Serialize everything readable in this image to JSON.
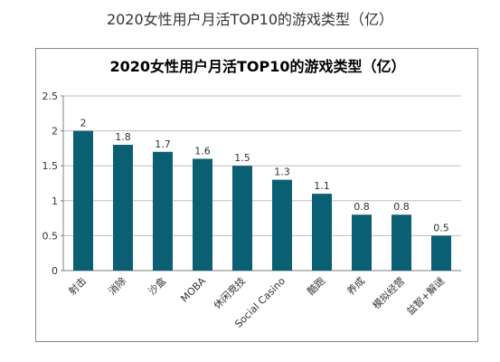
{
  "page": {
    "title": "2020女性用户月活TOP10的游戏类型（亿）"
  },
  "colors": {
    "bar": "#0b5f73",
    "grid": "#bfbfbf",
    "axis": "#808080"
  },
  "chart_data": {
    "type": "bar",
    "title": "2020女性用户月活TOP10的游戏类型（亿）",
    "xlabel": "",
    "ylabel": "",
    "categories": [
      "射击",
      "消除",
      "沙盒",
      "MOBA",
      "休闲竞技",
      "Social Casino",
      "酷跑",
      "养成",
      "模拟经营",
      "益智+解谜"
    ],
    "values": [
      2,
      1.8,
      1.7,
      1.6,
      1.5,
      1.3,
      1.1,
      0.8,
      0.8,
      0.5
    ],
    "data_labels": [
      "2",
      "1.8",
      "1.7",
      "1.6",
      "1.5",
      "1.3",
      "1.1",
      "0.8",
      "0.8",
      "0.5"
    ],
    "ylim": [
      0,
      2.5
    ],
    "yticks": [
      0,
      0.5,
      1,
      1.5,
      2,
      2.5
    ],
    "ytick_labels": [
      "0",
      "0.5",
      "1",
      "1.5",
      "2",
      "2.5"
    ],
    "grid": true,
    "legend": "none"
  }
}
